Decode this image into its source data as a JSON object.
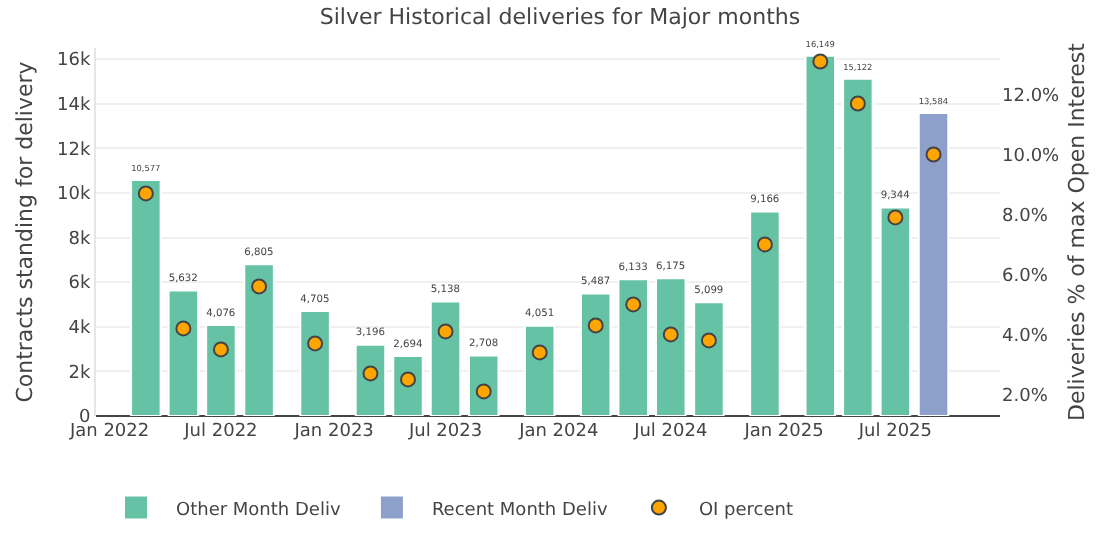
{
  "chart_data": {
    "type": "bar",
    "title": "Silver Historical deliveries for Major months",
    "ylabel": "Contracts standing for delivery",
    "y2label": "Deliveries % of max Open Interest",
    "series": [
      {
        "name": "Other Month Deliv",
        "color": "#66c2a5",
        "x": [
          "2022-03",
          "2022-05",
          "2022-07",
          "2022-09",
          "2022-12",
          "2023-03",
          "2023-05",
          "2023-07",
          "2023-09",
          "2023-12",
          "2024-03",
          "2024-05",
          "2024-07",
          "2024-09",
          "2024-12",
          "2025-03",
          "2025-05",
          "2025-07"
        ],
        "values": [
          10577,
          5632,
          4076,
          6805,
          4705,
          3196,
          2694,
          5138,
          2708,
          4051,
          5487,
          6133,
          6175,
          5099,
          9166,
          16149,
          15122,
          9344
        ],
        "value_labels": [
          "10,577",
          "5,632",
          "4,076",
          "6,805",
          "4,705",
          "3,196",
          "2,694",
          "5,138",
          "2,708",
          "4,051",
          "5,487",
          "6,133",
          "6,175",
          "5,099",
          "9,166",
          "16,149",
          "15,122",
          "9,344"
        ]
      },
      {
        "name": "Recent Month Deliv",
        "color": "#8da0cb",
        "x": [
          "2025-09"
        ],
        "values": [
          13584
        ],
        "value_labels": [
          "13,584"
        ]
      },
      {
        "name": "OI percent",
        "type": "scatter",
        "axis": "y2",
        "color": "#ffa500",
        "x": [
          "2022-03",
          "2022-05",
          "2022-07",
          "2022-09",
          "2022-12",
          "2023-03",
          "2023-05",
          "2023-07",
          "2023-09",
          "2023-12",
          "2024-03",
          "2024-05",
          "2024-07",
          "2024-09",
          "2024-12",
          "2025-03",
          "2025-05",
          "2025-07",
          "2025-09"
        ],
        "values": [
          8.7,
          4.2,
          3.5,
          5.6,
          3.7,
          2.7,
          2.5,
          4.1,
          2.1,
          3.4,
          4.3,
          5.0,
          4.0,
          3.8,
          7.0,
          13.1,
          11.7,
          7.9,
          10.0
        ]
      }
    ],
    "marker": "circle",
    "xlim": [
      "2021-12-10",
      "2025-12-18"
    ],
    "xticks": [
      {
        "value": "2022-01",
        "label": "Jan 2022"
      },
      {
        "value": "2022-07",
        "label": "Jul 2022"
      },
      {
        "value": "2023-01",
        "label": "Jan 2023"
      },
      {
        "value": "2023-07",
        "label": "Jul 2023"
      },
      {
        "value": "2024-01",
        "label": "Jan 2024"
      },
      {
        "value": "2024-07",
        "label": "Jul 2024"
      },
      {
        "value": "2025-01",
        "label": "Jan 2025"
      },
      {
        "value": "2025-07",
        "label": "Jul 2025"
      }
    ],
    "ylim": [
      0,
      16500
    ],
    "yticks": [
      0,
      {
        "value": 2000,
        "label": "2k"
      },
      {
        "value": 4000,
        "label": "4k"
      },
      {
        "value": 6000,
        "label": "6k"
      },
      {
        "value": 8000,
        "label": "8k"
      },
      {
        "value": 10000,
        "label": "10k"
      },
      {
        "value": 12000,
        "label": "12k"
      },
      {
        "value": 14000,
        "label": "14k"
      },
      {
        "value": 16000,
        "label": "16k"
      }
    ],
    "y2lim": [
      1.28,
      13.55
    ],
    "y2ticks": [
      {
        "value": 2,
        "label": "2.0%"
      },
      {
        "value": 4,
        "label": "4.0%"
      },
      {
        "value": 6,
        "label": "6.0%"
      },
      {
        "value": 8,
        "label": "8.0%"
      },
      {
        "value": 10,
        "label": "10.0%"
      },
      {
        "value": 12,
        "label": "12.0%"
      }
    ],
    "grid": "y",
    "legend": "bottom"
  }
}
